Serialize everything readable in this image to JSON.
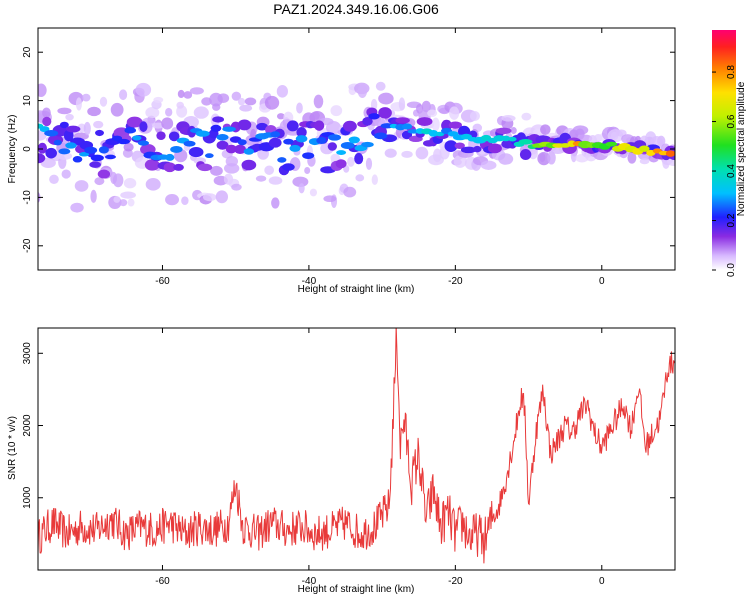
{
  "title": "PAZ1.2024.349.16.06.G06",
  "colors": {
    "snr_line": "#e83a3a",
    "axis": "#000000"
  },
  "chart_data": [
    {
      "type": "heatmap",
      "xlabel": "Height of straight line (km)",
      "ylabel": "Frequency (Hz)",
      "xlim": [
        -77,
        10
      ],
      "ylim": [
        -25,
        25
      ],
      "xticks": [
        -60,
        -40,
        -20,
        0
      ],
      "yticks": [
        20,
        10,
        0,
        -10,
        -20
      ],
      "ytick_labels": [
        "20",
        "10",
        "0",
        "-10",
        "-20"
      ],
      "colorbar": {
        "label": "Normalized spectral amplitude",
        "range": [
          0.0,
          0.97
        ],
        "ticks": [
          0.0,
          0.2,
          0.4,
          0.6,
          0.8
        ],
        "tick_labels": [
          "0.0",
          "0.2",
          "0.4",
          "0.6",
          "0.8"
        ],
        "colormap": "rainbow"
      },
      "ridge": [
        {
          "x": -75,
          "f": 2,
          "a": 0.35
        },
        {
          "x": -70,
          "f": -1,
          "a": 0.3
        },
        {
          "x": -65,
          "f": 1,
          "a": 0.3
        },
        {
          "x": -60,
          "f": 0,
          "a": 0.3
        },
        {
          "x": -55,
          "f": 1,
          "a": 0.3
        },
        {
          "x": -50,
          "f": 2,
          "a": 0.28
        },
        {
          "x": -45,
          "f": 0,
          "a": 0.3
        },
        {
          "x": -40,
          "f": 1,
          "a": 0.3
        },
        {
          "x": -35,
          "f": 0,
          "a": 0.32
        },
        {
          "x": -31,
          "f": 5,
          "a": 0.28
        },
        {
          "x": -25,
          "f": 4,
          "a": 0.38
        },
        {
          "x": -20,
          "f": 3,
          "a": 0.35
        },
        {
          "x": -15,
          "f": 2,
          "a": 0.4
        },
        {
          "x": -10,
          "f": 1,
          "a": 0.5
        },
        {
          "x": -5,
          "f": 1,
          "a": 0.9
        },
        {
          "x": 0,
          "f": 1,
          "a": 0.7
        },
        {
          "x": 5,
          "f": 0,
          "a": 0.75
        },
        {
          "x": 9,
          "f": -1,
          "a": 0.9
        }
      ]
    },
    {
      "type": "line",
      "xlabel": "Height of straight line (km)",
      "ylabel": "SNR (10 * v/v)",
      "xlim": [
        -77,
        10
      ],
      "ylim": [
        0,
        3350
      ],
      "xticks": [
        -60,
        -40,
        -20,
        0
      ],
      "yticks": [
        1000,
        2000,
        3000
      ],
      "series": [
        {
          "x": [
            -77,
            -75,
            -73,
            -71,
            -69,
            -67,
            -65,
            -63,
            -61,
            -59,
            -57,
            -55,
            -53,
            -51,
            -50,
            -49,
            -47,
            -45,
            -43,
            -41,
            -39,
            -37,
            -35,
            -33,
            -31,
            -29,
            -28,
            -27.5,
            -27,
            -26,
            -25,
            -24,
            -23,
            -22,
            -21,
            -20,
            -19,
            -18,
            -17,
            -16,
            -15,
            -14,
            -13,
            -12,
            -11,
            -10.5,
            -10,
            -9,
            -8,
            -7,
            -6,
            -5,
            -4,
            -3,
            -2,
            -1,
            0,
            1,
            2,
            3,
            4,
            5,
            6,
            7,
            8,
            9,
            10
          ],
          "y": [
            450,
            650,
            500,
            600,
            550,
            700,
            500,
            600,
            550,
            650,
            500,
            600,
            550,
            650,
            1200,
            600,
            500,
            650,
            550,
            600,
            500,
            550,
            650,
            500,
            600,
            900,
            3300,
            1700,
            2100,
            1200,
            1600,
            700,
            1100,
            600,
            800,
            500,
            650,
            450,
            500,
            400,
            700,
            900,
            1300,
            1800,
            2400,
            2200,
            900,
            1900,
            2500,
            1600,
            1800,
            2000,
            1900,
            2150,
            2300,
            1900,
            1700,
            1900,
            2100,
            2300,
            1950,
            2550,
            1700,
            1900,
            2100,
            2800,
            2900
          ]
        }
      ]
    }
  ]
}
